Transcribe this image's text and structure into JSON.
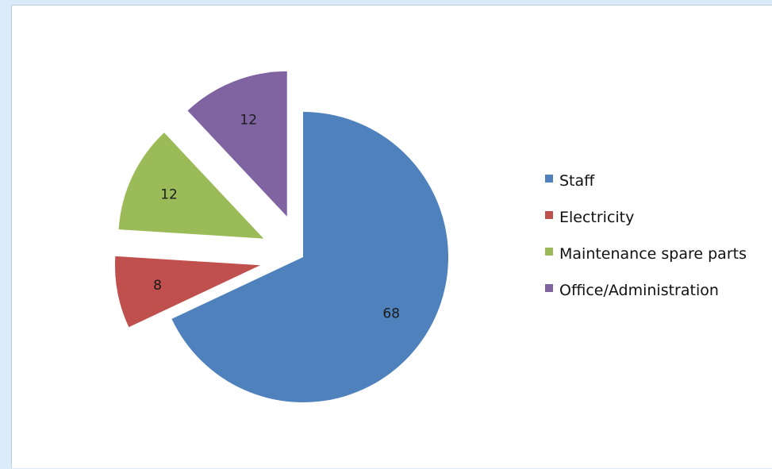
{
  "chart_data": {
    "type": "pie",
    "title": "",
    "exploded": true,
    "legend_position": "right",
    "slices": [
      {
        "name": "Staff",
        "value": 68,
        "color": "#4f81bd"
      },
      {
        "name": "Electricity",
        "value": 8,
        "color": "#c0504d"
      },
      {
        "name": "Maintenance spare parts",
        "value": 12,
        "color": "#9bbb59"
      },
      {
        "name": "Office/Administration",
        "value": 12,
        "color": "#8064a2"
      }
    ]
  }
}
